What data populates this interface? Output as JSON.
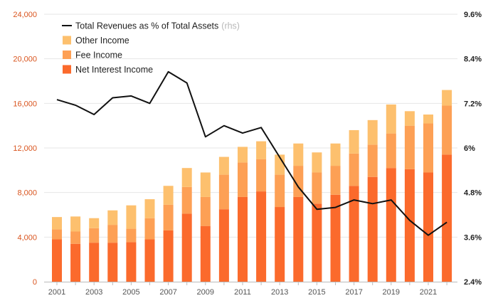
{
  "chart_data": {
    "type": "bar",
    "categories": [
      "2001",
      "2002",
      "2003",
      "2004",
      "2005",
      "2006",
      "2007",
      "2008",
      "2009",
      "2010",
      "2011",
      "2012",
      "2013",
      "2014",
      "2015",
      "2016",
      "2017",
      "2018",
      "2019",
      "2020",
      "2021",
      "2022"
    ],
    "x_tick_labels": [
      "2001",
      "2003",
      "2005",
      "2007",
      "2009",
      "2011",
      "2013",
      "2015",
      "2017",
      "2019",
      "2021"
    ],
    "series": [
      {
        "name": "Net Interest Income",
        "role": "stacked-bar",
        "color": "#fb6a2c",
        "values": [
          3800,
          3400,
          3500,
          3500,
          3550,
          3800,
          4600,
          6100,
          5000,
          6500,
          7600,
          8100,
          6700,
          7600,
          7000,
          7800,
          8600,
          9400,
          10200,
          10100,
          9800,
          11400
        ]
      },
      {
        "name": "Fee Income",
        "role": "stacked-bar",
        "color": "#fda055",
        "values": [
          900,
          1100,
          1300,
          1600,
          1200,
          1900,
          2300,
          2400,
          2600,
          3100,
          3100,
          2900,
          2900,
          2800,
          2800,
          2600,
          2900,
          2900,
          3100,
          3900,
          4400,
          4400
        ]
      },
      {
        "name": "Other Income",
        "role": "stacked-bar",
        "color": "#fdc06e",
        "values": [
          1100,
          1350,
          900,
          1300,
          2100,
          1700,
          1700,
          1700,
          2200,
          1600,
          1400,
          1600,
          1800,
          2000,
          1800,
          2000,
          2100,
          2200,
          2600,
          1300,
          800,
          1400
        ]
      },
      {
        "name": "Total Revenues as % of Total Assets",
        "legend_suffix": "(rhs)",
        "role": "line",
        "axis": "right",
        "color": "#111111",
        "values": [
          7.3,
          7.15,
          6.9,
          7.35,
          7.4,
          7.2,
          8.05,
          7.75,
          6.3,
          6.6,
          6.4,
          6.55,
          5.75,
          4.95,
          4.35,
          4.4,
          4.6,
          4.5,
          4.6,
          4.05,
          3.65,
          4.0
        ]
      }
    ],
    "legend": {
      "position": "top-left",
      "order": [
        "Total Revenues as % of Total Assets",
        "Other Income",
        "Fee Income",
        "Net Interest Income"
      ]
    },
    "y_left": {
      "ylim": [
        0,
        24000
      ],
      "ticks": [
        0,
        4000,
        8000,
        12000,
        16000,
        20000,
        24000
      ],
      "tick_labels": [
        "0",
        "4,000",
        "8,000",
        "12,000",
        "16,000",
        "20,000",
        "24,000"
      ],
      "color": "#d9541e"
    },
    "y_right": {
      "ylim": [
        2.4,
        9.6
      ],
      "ticks": [
        2.4,
        3.6,
        4.8,
        6,
        7.2,
        8.4,
        9.6
      ],
      "tick_labels": [
        "2.4%",
        "3.6%",
        "4.8%",
        "6%",
        "7.2%",
        "8.4%",
        "9.6%"
      ],
      "color": "#222222"
    },
    "grid": true,
    "title": "",
    "xlabel": "",
    "ylabel": ""
  }
}
